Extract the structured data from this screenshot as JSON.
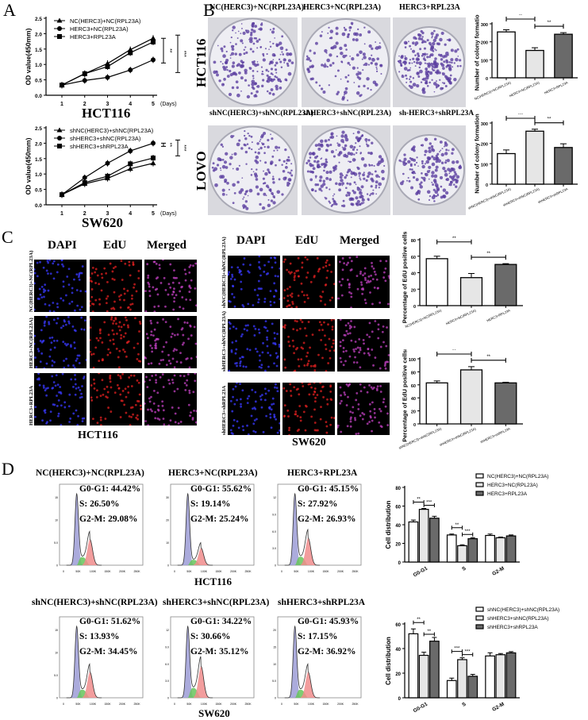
{
  "panels": {
    "A": "A",
    "B": "B",
    "C": "C",
    "D": "D"
  },
  "panelB": {
    "row_labels": [
      "HCT116",
      "LOVO"
    ],
    "titles_row1": [
      "NC(HERC3)+NC(RPL23A)",
      "HERC3+NC(RPL23A)",
      "HERC3+RPL23A"
    ],
    "titles_row2": [
      "shNC(HERC3)+shNC(RPL23A)",
      "shHERC3+shNC(RPL23A)",
      "sh-HERC3+shRPL23A"
    ]
  },
  "panelC": {
    "headers": [
      "DAPI",
      "EdU",
      "Merged"
    ],
    "hct_rows": [
      "NC(HERC3)+NC(RPL23A)",
      "HERC3+NC(RPL23A)",
      "HERC3+RPL23A"
    ],
    "sw_rows": [
      "shNC(HERC3)+shNC(RPL23A)",
      "shHERC3+shNC(RPL23A)",
      "shHERC3+shRPL23A"
    ],
    "hct_caption": "HCT116",
    "sw_caption": "SW620"
  },
  "panelD": {
    "caption_row1": "HCT116",
    "caption_row2": "SW620",
    "histograms": [
      {
        "title": "NC(HERC3)+NC(RPL23A)",
        "g1": "G0-G1: 44.42%",
        "s": "S: 26.50%",
        "g2": "G2-M: 29.08%",
        "g2_ratio": 0.36,
        "yticks": [
          "0",
          "5.0",
          "10",
          "15"
        ]
      },
      {
        "title": "HERC3+NC(RPL23A)",
        "g1": "G0-G1: 55.62%",
        "s": "S: 19.14%",
        "g2": "G2-M: 25.24%",
        "g2_ratio": 0.24,
        "yticks": [
          "0",
          "10",
          "20",
          "30"
        ]
      },
      {
        "title": "HERC3+RPL23A",
        "g1": "G0-G1: 45.15%",
        "s": "S: 27.92%",
        "g2": "G2-M: 26.93%",
        "g2_ratio": 0.38,
        "yticks": [
          "0",
          "3.0",
          "6.0",
          "9.0",
          "12"
        ]
      },
      {
        "title": "shNC(HERC3)+shNC(RPL23A)",
        "g1": "G0-G1: 51.62%",
        "s": "S: 13.93%",
        "g2": "G2-M: 34.45%",
        "g2_ratio": 0.36,
        "yticks": [
          "0",
          "5.0",
          "10",
          "15"
        ]
      },
      {
        "title": "shHERC3+shNC(RPL23A)",
        "g1": "G0-G1: 34.22%",
        "s": "S: 30.66%",
        "g2": "G2-M: 35.12%",
        "g2_ratio": 0.44,
        "yticks": [
          "0",
          "3.0",
          "6.0",
          "9.0",
          "12"
        ]
      },
      {
        "title": "shHERC3+shRPL23A",
        "g1": "G0-G1: 45.93%",
        "s": "S: 17.15%",
        "g2": "G2-M: 36.92%",
        "g2_ratio": 0.36,
        "yticks": [
          "0",
          "5.0",
          "10",
          "15",
          "20"
        ]
      }
    ],
    "xticks": [
      "0",
      "50K",
      "100K",
      "150K",
      "200K",
      "250K"
    ]
  },
  "colors": {
    "bar_white": "#ffffff",
    "bar_light": "#e6e6e6",
    "bar_dark": "#6a6a6a",
    "g1": "#9c9cd6",
    "s": "#66c45a",
    "g2": "#f08c8c",
    "dapi": "#3a3aff",
    "edu": "#e02020",
    "merged": "#c040c0"
  },
  "chart_data": [
    {
      "id": "A1",
      "type": "line",
      "title": "HCT116",
      "xlabel": "(Days)",
      "ylabel": "OD value(450mm)",
      "x": [
        1,
        2,
        3,
        4,
        5
      ],
      "ylim": [
        0,
        2.5
      ],
      "yticks": [
        "0.0",
        "0.5",
        "1.0",
        "1.5",
        "2.0",
        "2.5"
      ],
      "series": [
        {
          "name": "NC(HERC3)+NC(RPL23A)",
          "marker": "triangle",
          "values": [
            0.33,
            0.7,
            1.03,
            1.48,
            1.85
          ]
        },
        {
          "name": "HERC3+NC(RPL23A)",
          "marker": "circle",
          "values": [
            0.33,
            0.48,
            0.58,
            0.82,
            1.15
          ]
        },
        {
          "name": "HERC3+RPL23A",
          "marker": "square",
          "values": [
            0.33,
            0.7,
            0.93,
            1.38,
            1.73
          ]
        }
      ],
      "sig": [
        "**",
        "***"
      ]
    },
    {
      "id": "A2",
      "type": "line",
      "title": "SW620",
      "xlabel": "(Days)",
      "ylabel": "OD value(450mm)",
      "x": [
        1,
        2,
        3,
        4,
        5
      ],
      "ylim": [
        0,
        2.5
      ],
      "yticks": [
        "0.0",
        "0.5",
        "1.0",
        "1.5",
        "2.0",
        "2.5"
      ],
      "series": [
        {
          "name": "shNC(HERC3)+shNC(RPL23A)",
          "marker": "triangle",
          "values": [
            0.33,
            0.68,
            0.86,
            1.17,
            1.35
          ]
        },
        {
          "name": "shHERC3+shNC(RPL23A)",
          "marker": "circle",
          "values": [
            0.33,
            0.88,
            1.35,
            1.75,
            2.0
          ]
        },
        {
          "name": "shHERC3+shRPL23A",
          "marker": "square",
          "values": [
            0.33,
            0.72,
            0.93,
            1.33,
            1.52
          ]
        }
      ],
      "sig": [
        "**",
        "***"
      ]
    },
    {
      "id": "B1",
      "type": "bar",
      "ylabel": "Number of colony formation",
      "categories": [
        "NC(HERC3)+NC(RPL23A)",
        "HERC3+NC(RPL23A)",
        "HERC3+RPL23A"
      ],
      "values": [
        255,
        152,
        242
      ],
      "errors": [
        12,
        15,
        9
      ],
      "ylim": [
        0,
        300
      ],
      "yticks": [
        "0",
        "100",
        "200",
        "300"
      ],
      "sig": [
        [
          0,
          1,
          "**"
        ],
        [
          1,
          2,
          "**"
        ]
      ]
    },
    {
      "id": "B2",
      "type": "bar",
      "ylabel": "Number of colony formation",
      "categories": [
        "shNC(HERC3)+shNC(RPL23A)",
        "shHERC3+shNC(RPL23A)",
        "shHERC3+shRPL23A"
      ],
      "values": [
        150,
        260,
        180
      ],
      "errors": [
        18,
        10,
        18
      ],
      "ylim": [
        0,
        300
      ],
      "yticks": [
        "0",
        "100",
        "200",
        "300"
      ],
      "sig": [
        [
          0,
          1,
          "***"
        ],
        [
          1,
          2,
          "**"
        ]
      ]
    },
    {
      "id": "C1",
      "type": "bar",
      "ylabel": "Percentage of EdU positive cells(%)",
      "categories": [
        "NC(HERC3)+NC(RPL23A)",
        "HERC3+NC(RPL23A)",
        "HERC3+RPL23A"
      ],
      "values": [
        57,
        34,
        50
      ],
      "errors": [
        3,
        5,
        1
      ],
      "ylim": [
        0,
        80
      ],
      "yticks": [
        "0",
        "20",
        "40",
        "60",
        "80"
      ],
      "sig": [
        [
          0,
          1,
          "**"
        ],
        [
          1,
          2,
          "**"
        ]
      ]
    },
    {
      "id": "C2",
      "type": "bar",
      "ylabel": "Percentage of EdU positive cells(%)",
      "categories": [
        "shNC(HERC3)+shNC(RPL23A)",
        "shHERC3+shNC(RPL23A)",
        "shHERC3+shRPL23A"
      ],
      "values": [
        63,
        83,
        63
      ],
      "errors": [
        3,
        5,
        1
      ],
      "ylim": [
        0,
        100
      ],
      "yticks": [
        "0",
        "20",
        "40",
        "60",
        "80",
        "100"
      ],
      "sig": [
        [
          0,
          1,
          "**"
        ],
        [
          1,
          2,
          "**"
        ]
      ]
    },
    {
      "id": "D1",
      "type": "grouped_bar",
      "ylabel": "Cell distribution",
      "categories": [
        "G0-G1",
        "S",
        "G2-M"
      ],
      "ylim": [
        0,
        80
      ],
      "yticks": [
        "0",
        "20",
        "40",
        "60",
        "80"
      ],
      "legend": "top-right",
      "series": [
        {
          "name": "NC(HERC3)+NC(RPL23A)",
          "values": [
            43,
            29,
            28.5
          ],
          "errors": [
            2,
            1,
            1.5
          ]
        },
        {
          "name": "HERC3+NC(RPL23A)",
          "values": [
            56.5,
            17.5,
            26
          ],
          "errors": [
            1,
            1,
            0.8
          ]
        },
        {
          "name": "HERC3+RPL23A",
          "values": [
            47,
            25,
            28
          ],
          "errors": [
            2,
            1.2,
            1
          ]
        }
      ],
      "sig": [
        [
          0,
          0,
          1,
          "**"
        ],
        [
          0,
          1,
          2,
          "***"
        ],
        [
          1,
          0,
          1,
          "**"
        ],
        [
          1,
          1,
          2,
          "***"
        ]
      ]
    },
    {
      "id": "D2",
      "type": "grouped_bar",
      "ylabel": "Cell distribution",
      "categories": [
        "G0-G1",
        "S",
        "G2-M"
      ],
      "ylim": [
        0,
        60
      ],
      "yticks": [
        "0",
        "20",
        "40",
        "60"
      ],
      "legend": "top-right",
      "series": [
        {
          "name": "shNC(HERC3)+shNC(RPL23A)",
          "values": [
            52,
            14,
            34
          ],
          "errors": [
            4,
            2,
            2.5
          ]
        },
        {
          "name": "shHERC3+shNC(RPL23A)",
          "values": [
            34.5,
            31,
            35
          ],
          "errors": [
            2.5,
            1.5,
            1
          ]
        },
        {
          "name": "shHERC3+shRPL23A",
          "values": [
            46,
            17.5,
            36.5
          ],
          "errors": [
            3,
            1.5,
            1
          ]
        }
      ],
      "sig": [
        [
          0,
          0,
          1,
          "**"
        ],
        [
          0,
          1,
          2,
          "**"
        ],
        [
          1,
          0,
          1,
          "***"
        ],
        [
          1,
          1,
          2,
          "***"
        ]
      ]
    }
  ]
}
